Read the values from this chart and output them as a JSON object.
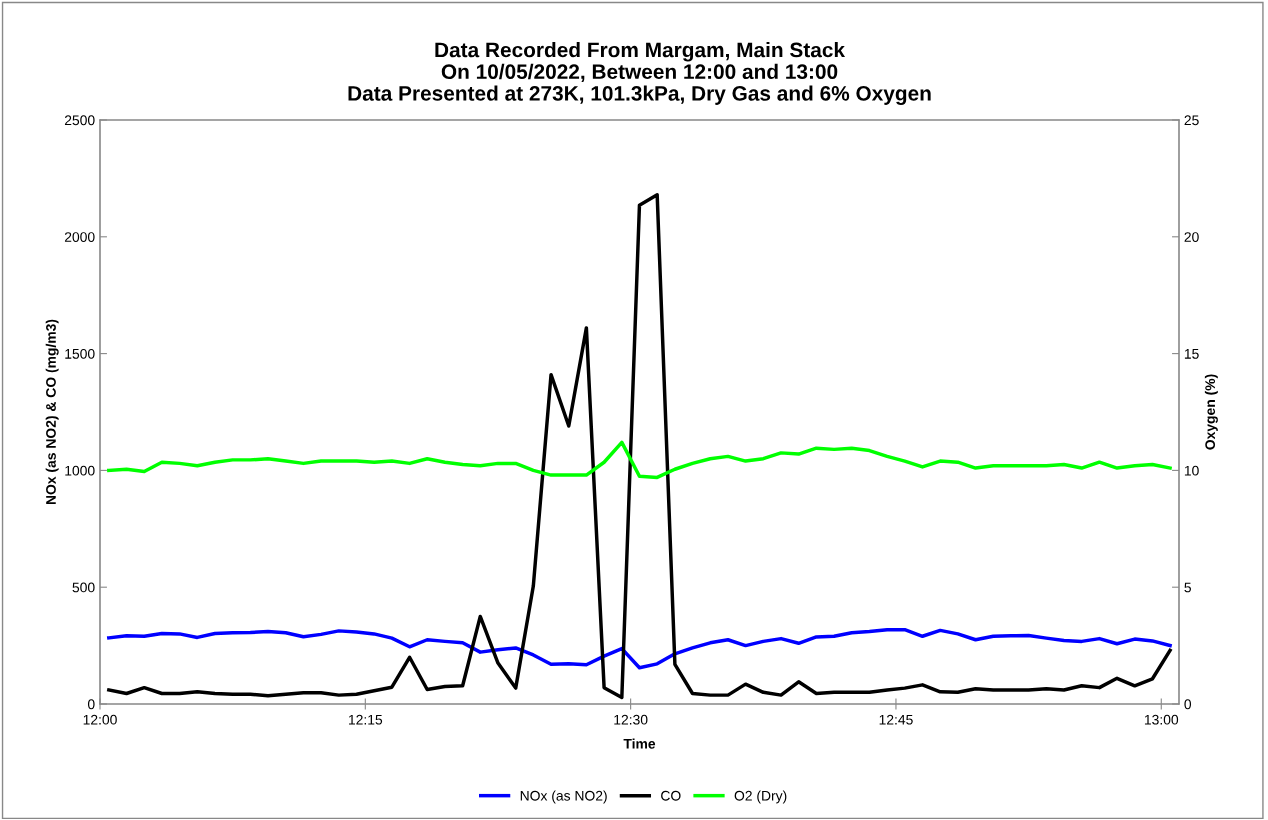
{
  "chart_data": {
    "type": "line",
    "title": "Data Recorded From Margam, Main Stack\nOn 10/05/2022, Between 12:00 and 13:00\nData Presented at 273K, 101.3kPa, Dry Gas and 6% Oxygen",
    "xlabel": "Time",
    "ylabel": "NOx (as NO2) & CO (mg/m3)",
    "y2label": "Oxygen (%)",
    "x": [
      12.0083,
      12.025,
      12.0417,
      12.0583,
      12.075,
      12.0917,
      12.1083,
      12.125,
      12.1417,
      12.1583,
      12.175,
      12.1917,
      12.2083,
      12.225,
      12.2417,
      12.2583,
      12.275,
      12.2917,
      12.3083,
      12.325,
      12.3417,
      12.3583,
      12.375,
      12.3917,
      12.4083,
      12.425,
      12.4417,
      12.4583,
      12.475,
      12.4917,
      12.5083,
      12.525,
      12.5417,
      12.5583,
      12.575,
      12.5917,
      12.6083,
      12.625,
      12.6417,
      12.6583,
      12.675,
      12.6917,
      12.7083,
      12.725,
      12.7417,
      12.7583,
      12.775,
      12.7917,
      12.8083,
      12.825,
      12.8417,
      12.8583,
      12.875,
      12.8917,
      12.9083,
      12.925,
      12.9417,
      12.9583,
      12.975,
      12.9917,
      13.0083
    ],
    "series": [
      {
        "name": "NOx (as NO2)",
        "color": "#0000ff",
        "values": [
          283,
          292,
          290,
          302,
          300,
          285,
          302,
          305,
          306,
          310,
          305,
          288,
          298,
          313,
          308,
          300,
          282,
          245,
          275,
          268,
          262,
          222,
          232,
          240,
          210,
          170,
          172,
          168,
          205,
          237,
          155,
          172,
          215,
          240,
          262,
          275,
          250,
          268,
          280,
          260,
          287,
          290,
          305,
          310,
          318,
          318,
          290,
          315,
          300,
          275,
          290,
          292,
          293,
          282,
          272,
          268,
          280,
          258,
          278,
          270,
          250
        ]
      },
      {
        "name": "CO",
        "color": "#000000",
        "values": [
          60,
          45,
          70,
          45,
          45,
          52,
          45,
          42,
          42,
          35,
          42,
          48,
          48,
          38,
          42,
          57,
          72,
          200,
          62,
          75,
          78,
          375,
          175,
          68,
          505,
          1410,
          1190,
          1610,
          70,
          28,
          2135,
          2180,
          170,
          45,
          38,
          38,
          85,
          50,
          38,
          95,
          45,
          50,
          50,
          50,
          60,
          68,
          82,
          52,
          50,
          65,
          60,
          60,
          60,
          65,
          60,
          78,
          70,
          110,
          78,
          108,
          230
        ]
      },
      {
        "name": "O2 (Dry)",
        "color": "#00ff00",
        "axis": "y2",
        "values": [
          10.0,
          10.05,
          9.95,
          10.35,
          10.3,
          10.2,
          10.35,
          10.45,
          10.45,
          10.5,
          10.4,
          10.3,
          10.4,
          10.4,
          10.4,
          10.35,
          10.4,
          10.3,
          10.5,
          10.35,
          10.25,
          10.2,
          10.3,
          10.3,
          10.0,
          9.8,
          9.8,
          9.8,
          10.35,
          11.2,
          9.75,
          9.7,
          10.05,
          10.3,
          10.5,
          10.6,
          10.4,
          10.5,
          10.75,
          10.7,
          10.95,
          10.9,
          10.95,
          10.85,
          10.6,
          10.4,
          10.15,
          10.4,
          10.35,
          10.1,
          10.2,
          10.2,
          10.2,
          10.2,
          10.25,
          10.1,
          10.35,
          10.1,
          10.2,
          10.25,
          10.1
        ]
      }
    ],
    "xlim": [
      12,
      13.0167
    ],
    "xticks": [
      {
        "value": 12,
        "label": "12:00"
      },
      {
        "value": 12.25,
        "label": "12:15"
      },
      {
        "value": 12.5,
        "label": "12:30"
      },
      {
        "value": 12.75,
        "label": "12:45"
      },
      {
        "value": 13,
        "label": "13:00"
      }
    ],
    "ylim": [
      0,
      2500
    ],
    "yticks": [
      0,
      500,
      1000,
      1500,
      2000,
      2500
    ],
    "y2lim": [
      0,
      25
    ],
    "y2ticks": [
      0,
      5,
      10,
      15,
      20,
      25
    ],
    "legend": "bottom",
    "grid": false,
    "marker": "none",
    "line_style": "solid"
  }
}
